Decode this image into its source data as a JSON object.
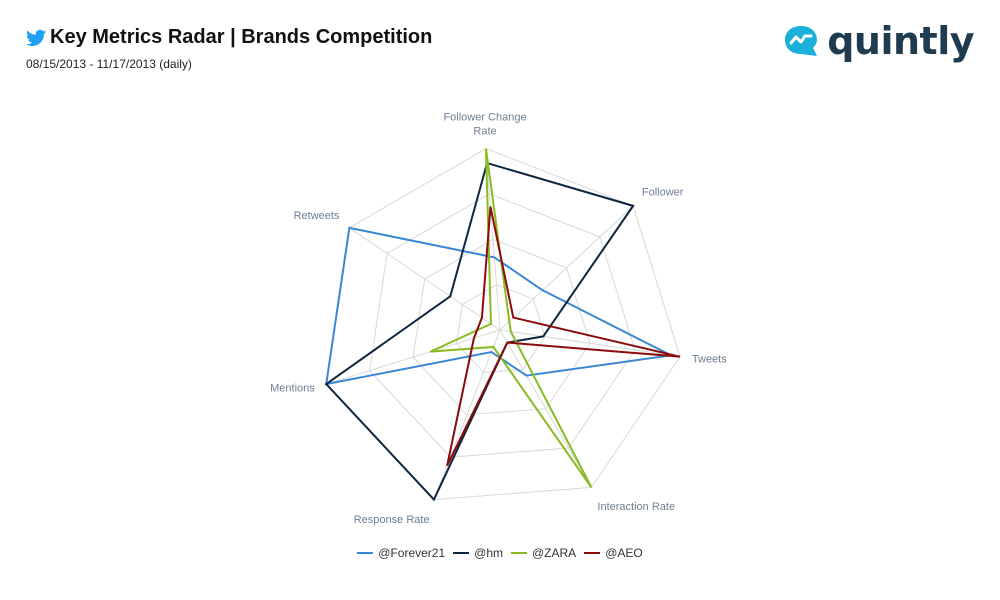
{
  "header": {
    "title": "Key Metrics Radar | Brands Competition",
    "subtitle": "08/15/2013 - 11/17/2013 (daily)",
    "icon": "twitter-bird-icon",
    "icon_color": "#1da1f2"
  },
  "logo": {
    "text": "quintly",
    "icon": "quintly-logo-icon",
    "color": "#1e3b4f",
    "icon_color": "#1ab0d9"
  },
  "chart_data": {
    "type": "radar",
    "title": "",
    "axes": [
      "Follower",
      "Tweets",
      "Interaction Rate",
      "Response Rate",
      "Mentions",
      "Retweets",
      "Follower Change Rate"
    ],
    "axis_label_lines": [
      [
        "Follower"
      ],
      [
        "Tweets"
      ],
      [
        "Interaction Rate"
      ],
      [
        "Response Rate"
      ],
      [
        "Mentions"
      ],
      [
        "Retweets"
      ],
      [
        "Follower Change",
        "Rate"
      ]
    ],
    "range": [
      0,
      1
    ],
    "grid": true,
    "grid_levels": 4,
    "legend_position": "bottom",
    "series": [
      {
        "name": "@Forever21",
        "color": "#3a87d3",
        "values": [
          0.32,
          0.95,
          0.29,
          0.13,
          1.0,
          1.0,
          0.4
        ]
      },
      {
        "name": "@hm",
        "color": "#0f2640",
        "values": [
          1.0,
          0.24,
          0.08,
          1.0,
          1.0,
          0.33,
          0.92
        ]
      },
      {
        "name": "@ZARA",
        "color": "#88bb22",
        "values": [
          0.07,
          0.06,
          1.0,
          0.1,
          0.4,
          0.06,
          1.0
        ]
      },
      {
        "name": "@AEO",
        "color": "#8b0a0a",
        "values": [
          0.1,
          1.0,
          0.08,
          0.8,
          0.15,
          0.12,
          0.68
        ]
      }
    ]
  }
}
